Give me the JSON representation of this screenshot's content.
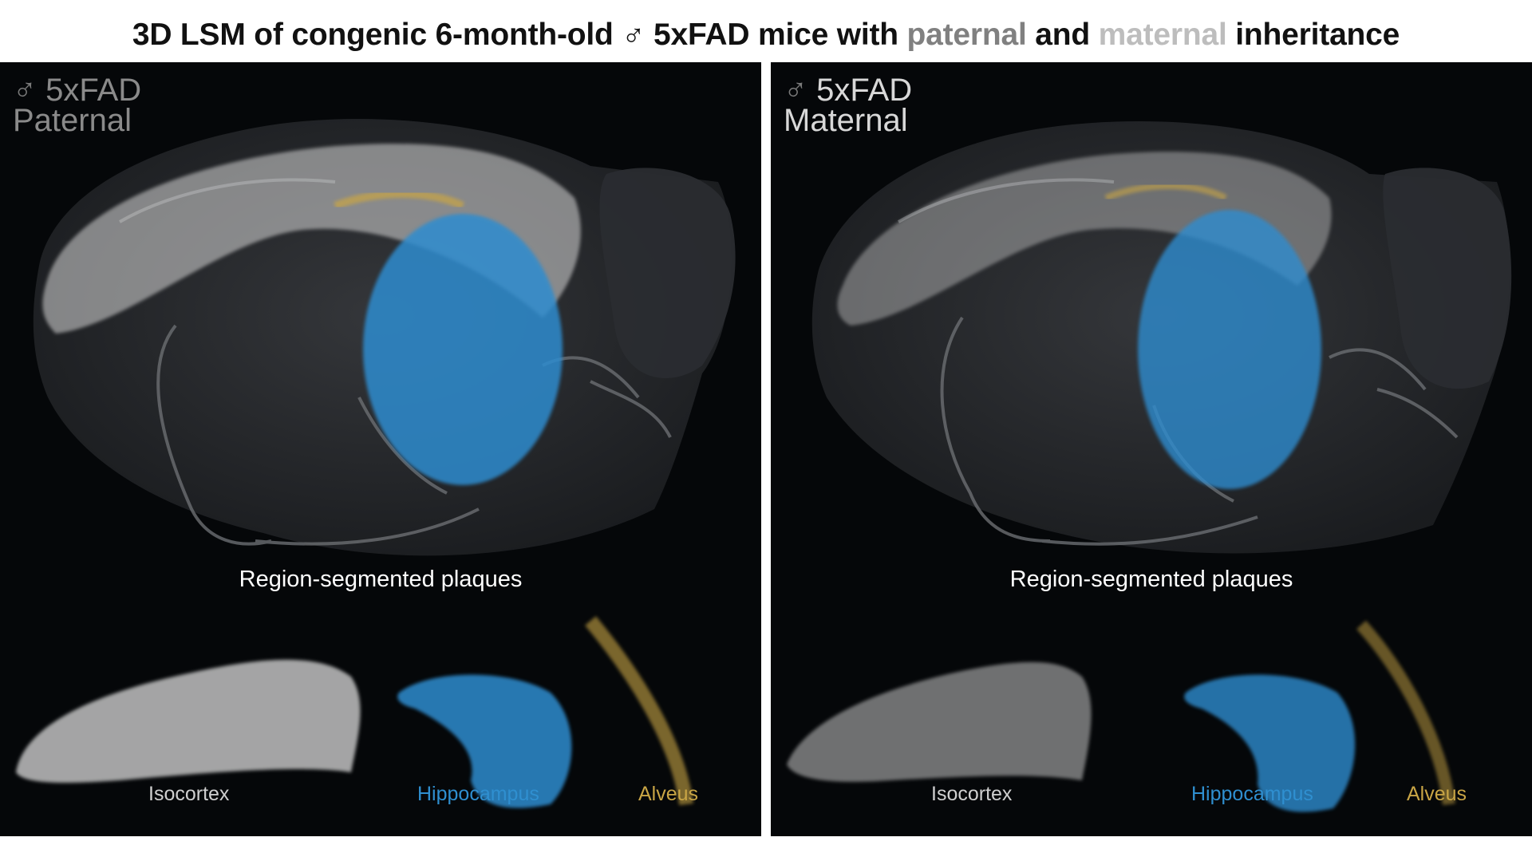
{
  "title": {
    "part1": "3D LSM of congenic 6-month-old ♂ 5xFAD mice with ",
    "paternal": "paternal",
    "and": " and ",
    "maternal": "maternal",
    "part2": " inheritance"
  },
  "colors": {
    "isocortex": "#d9d9d9",
    "hippocampus": "#2d8ccf",
    "alveus": "#c9a545",
    "background": "#050709"
  },
  "panels": [
    {
      "sex_symbol": "♂",
      "strain": "5xFAD",
      "inheritance": "Paternal",
      "caption": "Region-segmented plaques",
      "regions": [
        "Isocortex",
        "Hippocampus",
        "Alveus"
      ]
    },
    {
      "sex_symbol": "♂",
      "strain": "5xFAD",
      "inheritance": "Maternal",
      "caption": "Region-segmented plaques",
      "regions": [
        "Isocortex",
        "Hippocampus",
        "Alveus"
      ]
    }
  ]
}
